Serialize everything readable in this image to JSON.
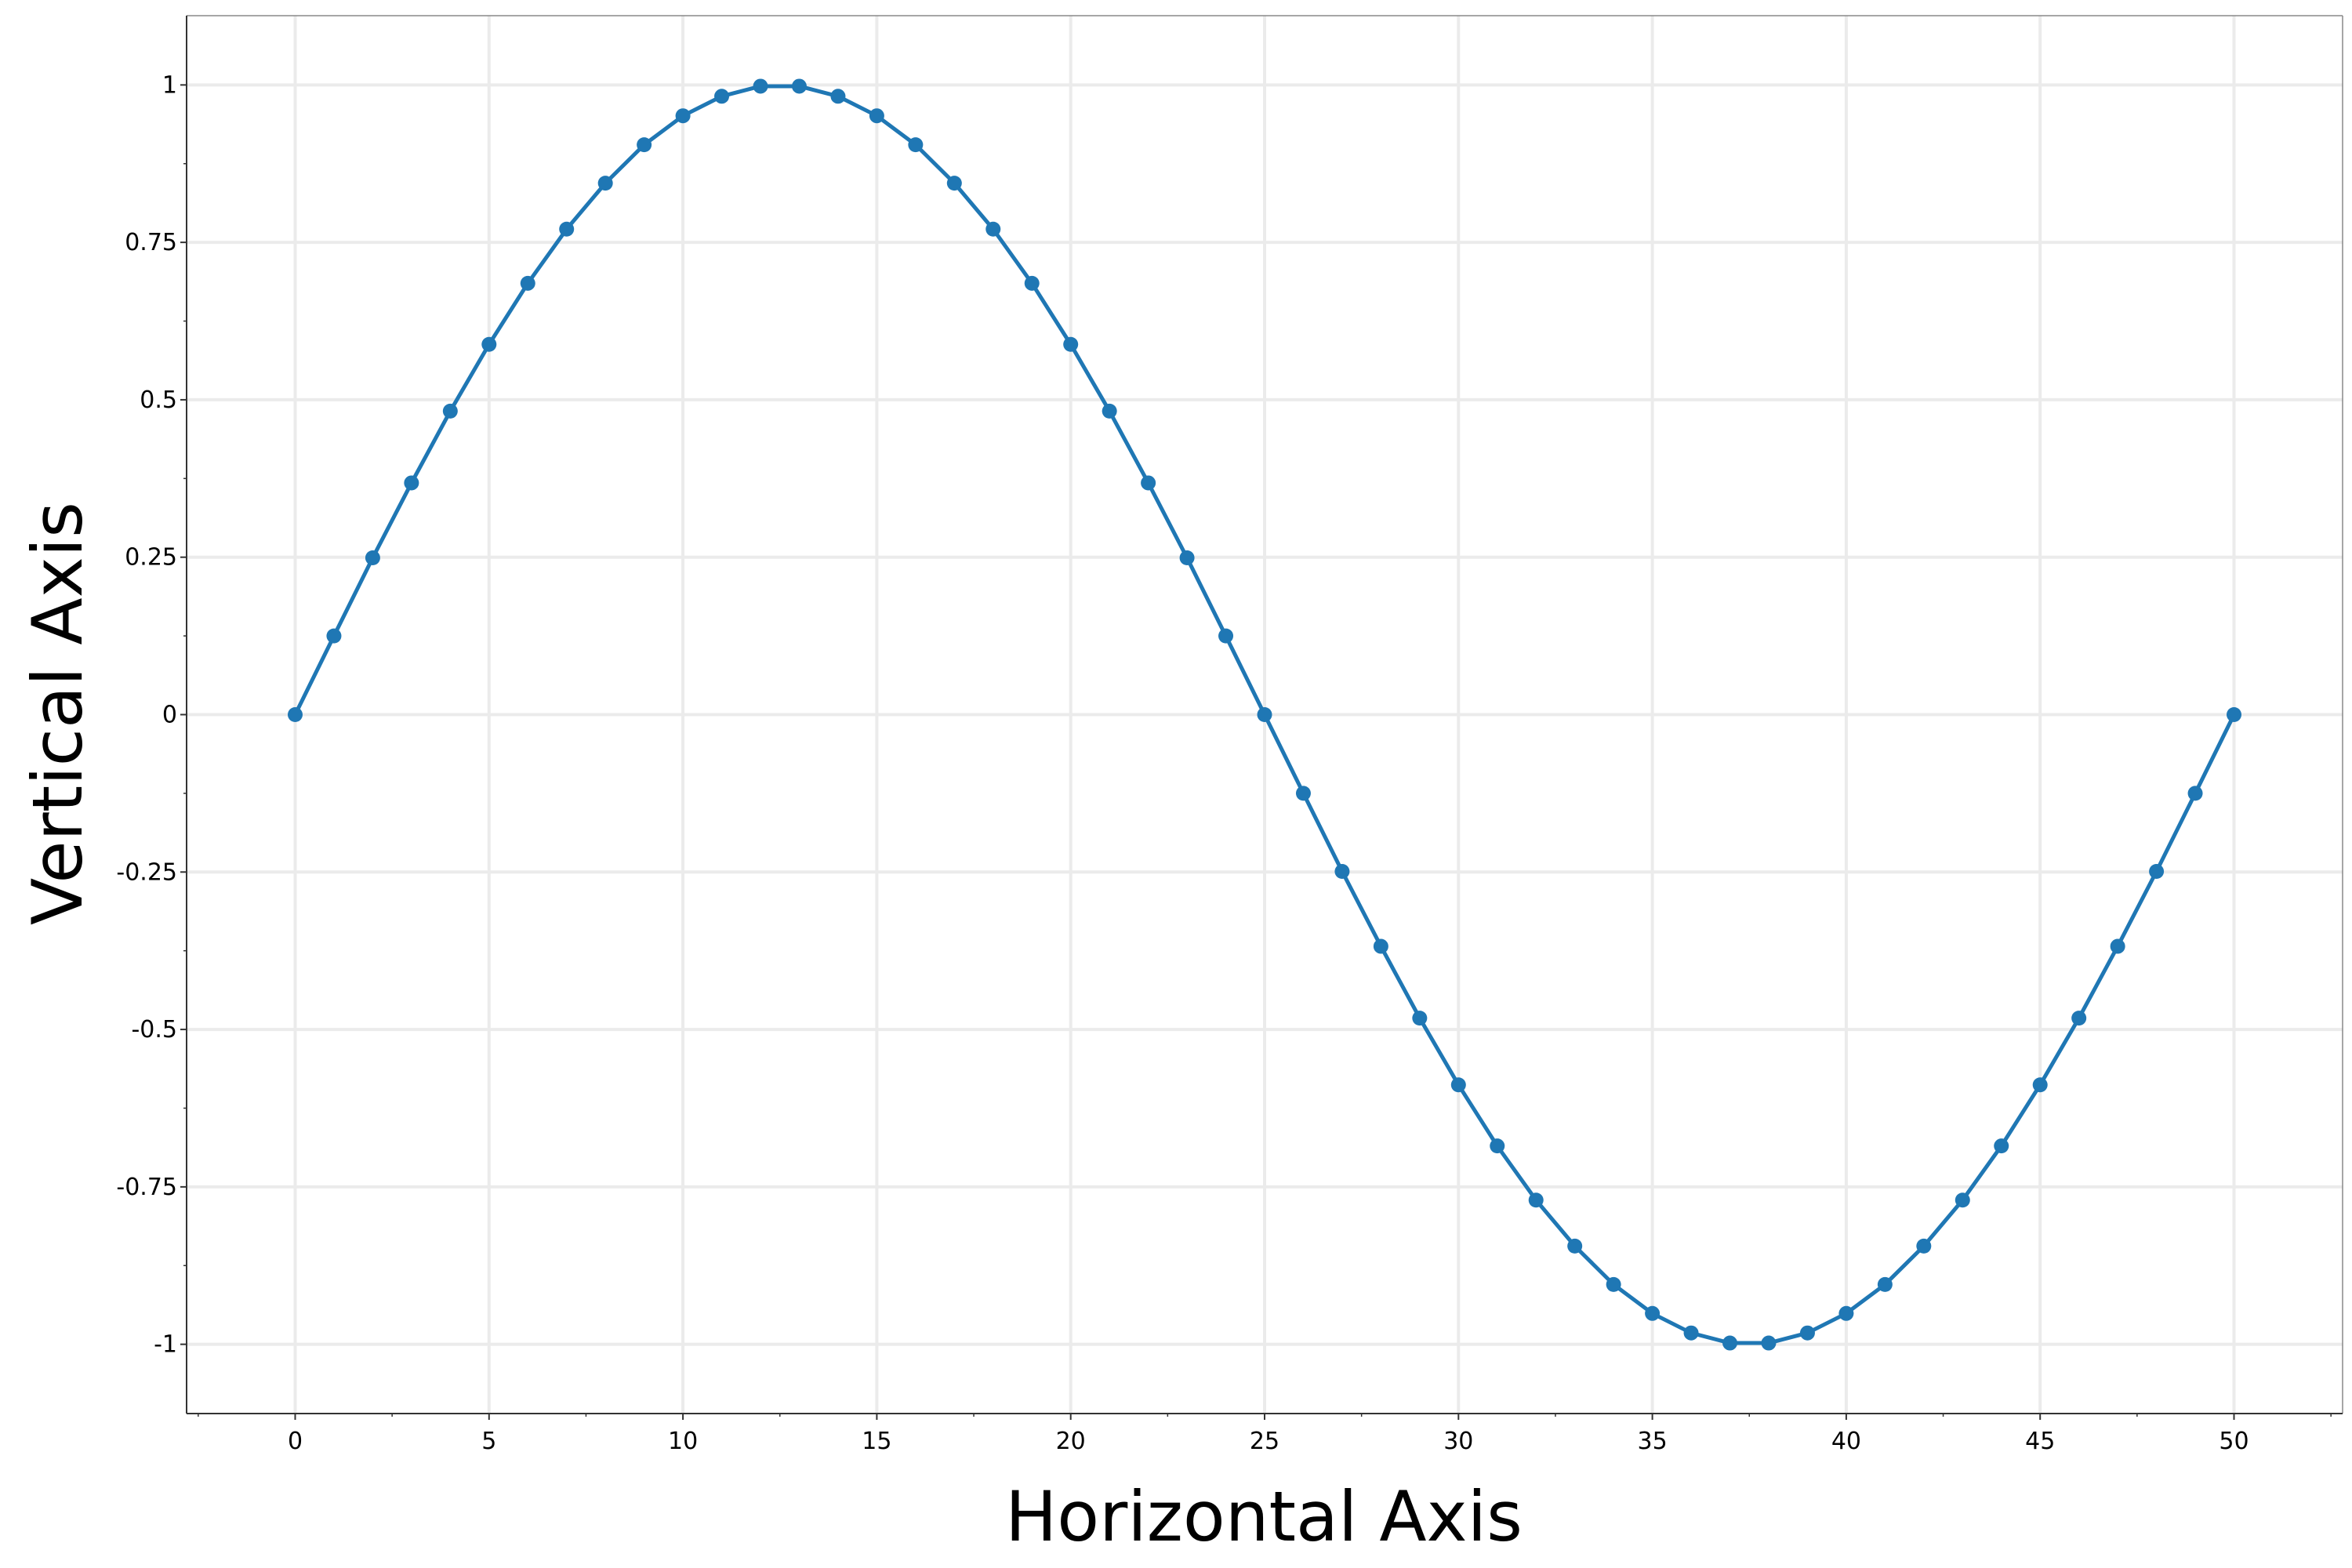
{
  "chart_data": {
    "type": "line",
    "title": "",
    "xlabel": "Horizontal Axis",
    "ylabel": "Vertical Axis",
    "xlim": [
      -2.8,
      52.8
    ],
    "ylim": [
      -1.11,
      1.11
    ],
    "x_ticks": [
      0,
      5,
      10,
      15,
      20,
      25,
      30,
      35,
      40,
      45,
      50
    ],
    "x_tick_labels": [
      "0",
      "5",
      "10",
      "15",
      "20",
      "25",
      "30",
      "35",
      "40",
      "45",
      "50"
    ],
    "y_ticks": [
      1,
      0.75,
      0.5,
      0.25,
      0,
      -0.25,
      -0.5,
      -0.75,
      -1
    ],
    "y_tick_labels": [
      "1",
      "0.75",
      "0.5",
      "0.25",
      "0",
      "-0.25",
      "-0.5",
      "-0.75",
      "-1"
    ],
    "grid": true,
    "legend": "none",
    "colors": {
      "series": "#1f77b4",
      "grid": "#ebebeb",
      "axis": "#888888",
      "background": "#ffffff"
    },
    "series": [
      {
        "marker": "circle",
        "x": [
          0,
          1,
          2,
          3,
          4,
          5,
          6,
          7,
          8,
          9,
          10,
          11,
          12,
          13,
          14,
          15,
          16,
          17,
          18,
          19,
          20,
          21,
          22,
          23,
          24,
          25,
          26,
          27,
          28,
          29,
          30,
          31,
          32,
          33,
          34,
          35,
          36,
          37,
          38,
          39,
          40,
          41,
          42,
          43,
          44,
          45,
          46,
          47,
          48,
          49,
          50
        ],
        "y": [
          0,
          0.125,
          0.249,
          0.368,
          0.482,
          0.588,
          0.685,
          0.771,
          0.844,
          0.905,
          0.951,
          0.982,
          0.998,
          0.998,
          0.982,
          0.951,
          0.905,
          0.844,
          0.771,
          0.685,
          0.588,
          0.482,
          0.368,
          0.249,
          0.125,
          0,
          -0.125,
          -0.249,
          -0.368,
          -0.482,
          -0.588,
          -0.685,
          -0.771,
          -0.844,
          -0.905,
          -0.951,
          -0.982,
          -0.998,
          -0.998,
          -0.982,
          -0.951,
          -0.905,
          -0.844,
          -0.771,
          -0.685,
          -0.588,
          -0.482,
          -0.368,
          -0.249,
          -0.125,
          0
        ]
      }
    ]
  }
}
